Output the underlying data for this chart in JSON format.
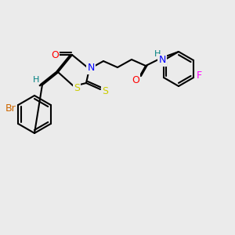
{
  "background_color": "#ebebeb",
  "bond_color": "#000000",
  "bond_width": 1.5,
  "atom_colors": {
    "C": "#000000",
    "N": "#0000ff",
    "O": "#ff0000",
    "S": "#cccc00",
    "Br": "#cc6600",
    "F": "#ff00ff",
    "H": "#008080"
  },
  "font_size": 9,
  "font_size_small": 8
}
